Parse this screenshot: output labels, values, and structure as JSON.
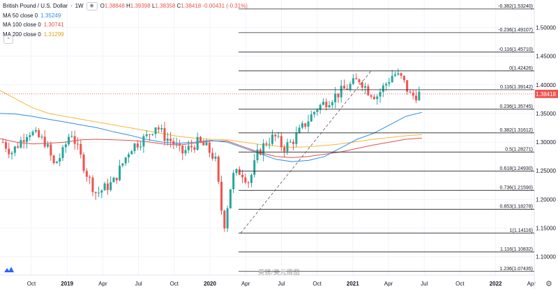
{
  "header": {
    "symbol": "British Pound / U.S. Dollar",
    "interval": "1W",
    "ohlc": {
      "open_label": "O",
      "open": "1.38848",
      "high_label": "H",
      "high": "1.39398",
      "low_label": "L",
      "low": "1.38358",
      "close_label": "C",
      "close": "1.38418",
      "change": "-0.00431 (-0.31%)"
    }
  },
  "legend": [
    {
      "label": "MA 50 close 0",
      "value": "1.35249",
      "color": "#2a8ee6"
    },
    {
      "label": "MA 100 close 0",
      "value": "1.30741",
      "color": "#e0514b"
    },
    {
      "label": "MA 200 close 0",
      "value": "1.31299",
      "color": "#f5b73b"
    }
  ],
  "watermark": "英镑/美元周图",
  "colors": {
    "up": "#26a69a",
    "down": "#ef5350",
    "fib": "#222222",
    "grid": "#f0f3fa"
  },
  "chart_data": {
    "type": "candlestick",
    "y_axis": {
      "range": [
        1.068,
        1.548
      ],
      "ticks": [
        1.1,
        1.15,
        1.2,
        1.25,
        1.3,
        1.35,
        1.4,
        1.45,
        1.5
      ]
    },
    "x_axis": {
      "labels": [
        "Oct",
        "2019",
        "Apr",
        "Jul",
        "Oct",
        "2020",
        "Apr",
        "Jul",
        "Oct",
        "2021",
        "Apr",
        "Jul",
        "Oct",
        "2022",
        "Apr"
      ],
      "bold": [
        "2019",
        "2020",
        "2021",
        "2022"
      ]
    },
    "fibonacci": [
      {
        "label": "-0.382(1.53240)",
        "value": 1.5324
      },
      {
        "label": "-0.236(1.49107)",
        "value": 1.49107
      },
      {
        "label": "-0.116(1.45710)",
        "value": 1.4571
      },
      {
        "label": "0(1.42426)",
        "value": 1.42426
      },
      {
        "label": "0.116(1.39142)",
        "value": 1.39142
      },
      {
        "label": "0.236(1.35745)",
        "value": 1.35745
      },
      {
        "label": "0.382(1.31612)",
        "value": 1.31612
      },
      {
        "label": "0.5(1.28271)",
        "value": 1.28271
      },
      {
        "label": "0.618(1.24930)",
        "value": 1.2493
      },
      {
        "label": "0.736(1.21590)",
        "value": 1.2159
      },
      {
        "label": "0.853(1.18278)",
        "value": 1.18278
      },
      {
        "label": "1(1.14116)",
        "value": 1.14116
      },
      {
        "label": "1.116(1.10832)",
        "value": 1.10832
      },
      {
        "label": "1.236(1.07435)",
        "value": 1.07435
      }
    ],
    "last_price": 1.38418,
    "trendline": {
      "from": [
        "2020-03",
        1.1412
      ],
      "to": [
        "2021-06",
        1.4243
      ]
    },
    "series": [
      {
        "name": "MA 50 close 0",
        "values": [
          1.35,
          1.349,
          1.345,
          1.34,
          1.335,
          1.33,
          1.325,
          1.318,
          1.312,
          1.305,
          1.3,
          1.298,
          1.3,
          1.303,
          1.3,
          1.29,
          1.28,
          1.27,
          1.266,
          1.268,
          1.275,
          1.29,
          1.305,
          1.315,
          1.33,
          1.345,
          1.352
        ]
      },
      {
        "name": "MA 100 close 0",
        "values": [
          1.306,
          1.3,
          1.297,
          1.298,
          1.3,
          1.304,
          1.305,
          1.304,
          1.303,
          1.301,
          1.297,
          1.295,
          1.298,
          1.302,
          1.302,
          1.292,
          1.282,
          1.275,
          1.273,
          1.275,
          1.279,
          1.283,
          1.289,
          1.295,
          1.3,
          1.305,
          1.307
        ]
      },
      {
        "name": "MA 200 close 0",
        "values": [
          1.39,
          1.375,
          1.36,
          1.35,
          1.345,
          1.34,
          1.335,
          1.33,
          1.325,
          1.32,
          1.315,
          1.31,
          1.307,
          1.305,
          1.304,
          1.3,
          1.296,
          1.293,
          1.291,
          1.292,
          1.294,
          1.297,
          1.301,
          1.305,
          1.308,
          1.311,
          1.313
        ]
      },
      {
        "name": "price",
        "values": [
          1.3,
          1.282,
          1.3,
          1.32,
          1.31,
          1.3,
          1.26,
          1.28,
          1.32,
          1.28,
          1.24,
          1.21,
          1.22,
          1.23,
          1.26,
          1.29,
          1.3,
          1.31,
          1.33,
          1.31,
          1.3,
          1.28,
          1.29,
          1.3,
          1.29,
          1.27,
          1.15,
          1.24,
          1.25,
          1.23,
          1.28,
          1.3,
          1.31,
          1.29,
          1.3,
          1.32,
          1.34,
          1.36,
          1.37,
          1.38,
          1.39,
          1.4,
          1.41,
          1.39,
          1.38,
          1.4,
          1.42,
          1.41,
          1.38,
          1.384
        ]
      }
    ]
  }
}
